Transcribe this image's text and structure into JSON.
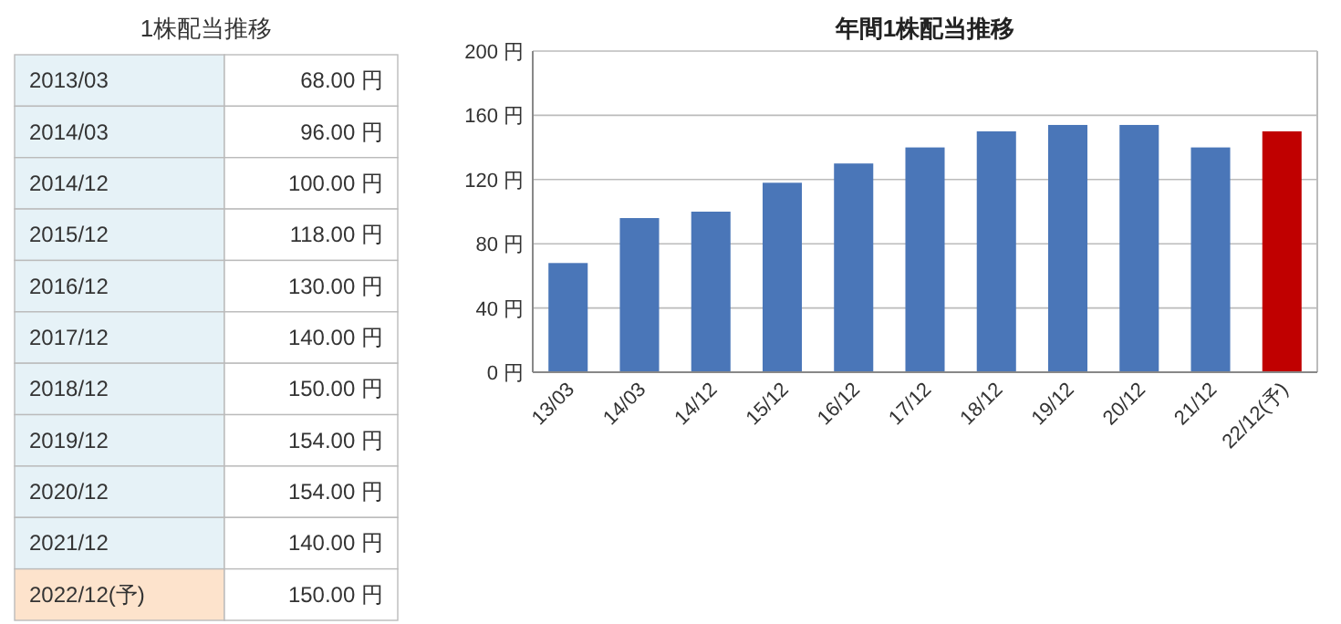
{
  "chart_data": [
    {
      "type": "other",
      "title": "1株配当推移",
      "annotations": [
        "2013/03",
        "68.00 円",
        "2014/03",
        "96.00 円",
        "2014/12",
        "100.00 円",
        "2015/12",
        "118.00 円",
        "2016/12",
        "130.00 円",
        "2017/12",
        "140.00 円",
        "2018/12",
        "150.00 円",
        "2019/12",
        "154.00 円",
        "2020/12",
        "154.00 円",
        "2021/12",
        "140.00 円",
        "2022/12(予)",
        "150.00 円"
      ]
    },
    {
      "type": "bar",
      "title": "年間1株配当推移",
      "categories": [
        "13/03",
        "14/03",
        "14/12",
        "15/12",
        "16/12",
        "17/12",
        "18/12",
        "19/12",
        "20/12",
        "21/12",
        "22/12(予)"
      ],
      "values": [
        68,
        96,
        100,
        118,
        130,
        140,
        150,
        154,
        154,
        140,
        150
      ],
      "colors": [
        "#4a76b8",
        "#4a76b8",
        "#4a76b8",
        "#4a76b8",
        "#4a76b8",
        "#4a76b8",
        "#4a76b8",
        "#4a76b8",
        "#4a76b8",
        "#4a76b8",
        "#c00000"
      ],
      "ylim": [
        0,
        200
      ],
      "yticks": [
        {
          "value": 0,
          "label": "0 円"
        },
        {
          "value": 40,
          "label": "40 円"
        },
        {
          "value": 80,
          "label": "80 円"
        },
        {
          "value": 120,
          "label": "120 円"
        },
        {
          "value": 160,
          "label": "160 円"
        },
        {
          "value": 200,
          "label": "200 円"
        }
      ],
      "grid": "y"
    }
  ]
}
